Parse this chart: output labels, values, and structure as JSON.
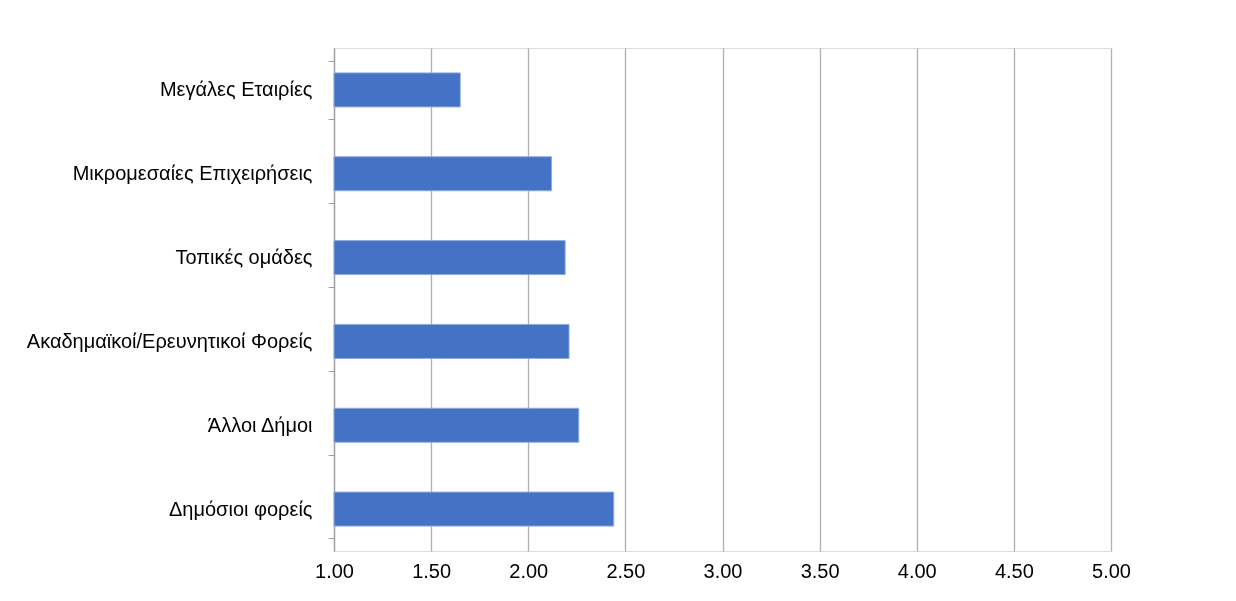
{
  "chart_data": {
    "type": "bar",
    "orientation": "horizontal",
    "categories": [
      "Μεγάλες Εταιρίες",
      "Μικρομεσαίες Επιχειρήσεις",
      "Τοπικές ομάδες",
      "Ακαδημαϊκοί/Ερευνητικοί  Φορείς",
      "Άλλοι Δήμοι",
      "Δημόσιοι φορείς"
    ],
    "values": [
      1.65,
      2.12,
      2.19,
      2.21,
      2.26,
      2.44
    ],
    "color": "#4472c4",
    "xlim": [
      1.0,
      5.0
    ],
    "xticks": [
      {
        "value": 1.0,
        "label": "1.00"
      },
      {
        "value": 1.5,
        "label": "1.50"
      },
      {
        "value": 2.0,
        "label": "2.00"
      },
      {
        "value": 2.5,
        "label": "2.50"
      },
      {
        "value": 3.0,
        "label": "3.00"
      },
      {
        "value": 3.5,
        "label": "3.50"
      },
      {
        "value": 4.0,
        "label": "4.00"
      },
      {
        "value": 4.5,
        "label": "4.50"
      },
      {
        "value": 5.0,
        "label": "5.00"
      }
    ],
    "grid": "x"
  }
}
